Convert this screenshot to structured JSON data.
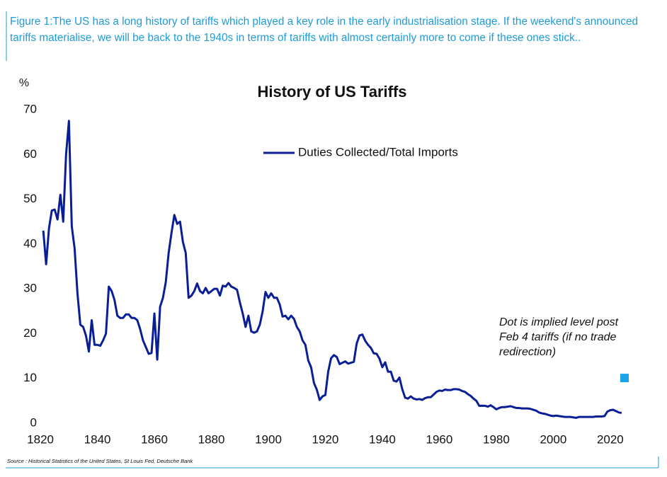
{
  "caption": "Figure 1:The US has a long history of tariffs which played a key role in the early industrialisation stage. If the weekend's announced tariffs materialise, we will be back to the 1940s in terms of tariffs with almost certainly more to come if these ones stick..",
  "source": "Source : Historical Statistics of the United States, St Louis Fed, Deutsche Bank",
  "chart_data": {
    "type": "line",
    "title": "History of US Tariffs",
    "y_label": "%",
    "annotation": [
      "Dot is implied level post",
      "Feb 4 tariffs (if no trade",
      "redirection)"
    ],
    "xlim": [
      1816,
      2026
    ],
    "xticks": [
      1820,
      1840,
      1860,
      1880,
      1900,
      1920,
      1940,
      1960,
      1980,
      2000,
      2020
    ],
    "ylim": [
      0,
      70
    ],
    "yticks": [
      0,
      10,
      20,
      30,
      40,
      50,
      60,
      70
    ],
    "grid": false,
    "legend": "top",
    "marker": {
      "x": 2025,
      "value": 10.1,
      "color": "#1aa3e8"
    },
    "x": [
      1821,
      1822,
      1823,
      1824,
      1825,
      1826,
      1827,
      1828,
      1829,
      1830,
      1831,
      1832,
      1833,
      1834,
      1835,
      1836,
      1837,
      1838,
      1839,
      1840,
      1841,
      1842,
      1843,
      1844,
      1845,
      1846,
      1847,
      1848,
      1849,
      1850,
      1851,
      1852,
      1853,
      1854,
      1855,
      1856,
      1857,
      1858,
      1859,
      1860,
      1861,
      1862,
      1863,
      1864,
      1865,
      1866,
      1867,
      1868,
      1869,
      1870,
      1871,
      1872,
      1873,
      1874,
      1875,
      1876,
      1877,
      1878,
      1879,
      1880,
      1881,
      1882,
      1883,
      1884,
      1885,
      1886,
      1887,
      1888,
      1889,
      1890,
      1891,
      1892,
      1893,
      1894,
      1895,
      1896,
      1897,
      1898,
      1899,
      1900,
      1901,
      1902,
      1903,
      1904,
      1905,
      1906,
      1907,
      1908,
      1909,
      1910,
      1911,
      1912,
      1913,
      1914,
      1915,
      1916,
      1917,
      1918,
      1919,
      1920,
      1921,
      1922,
      1923,
      1924,
      1925,
      1926,
      1927,
      1928,
      1929,
      1930,
      1931,
      1932,
      1933,
      1934,
      1935,
      1936,
      1937,
      1938,
      1939,
      1940,
      1941,
      1942,
      1943,
      1944,
      1945,
      1946,
      1947,
      1948,
      1949,
      1950,
      1951,
      1952,
      1953,
      1954,
      1955,
      1956,
      1957,
      1958,
      1959,
      1960,
      1961,
      1962,
      1963,
      1964,
      1965,
      1966,
      1967,
      1968,
      1969,
      1970,
      1971,
      1972,
      1973,
      1974,
      1975,
      1976,
      1977,
      1978,
      1979,
      1980,
      1981,
      1982,
      1983,
      1984,
      1985,
      1986,
      1987,
      1988,
      1989,
      1990,
      1991,
      1992,
      1993,
      1994,
      1995,
      1996,
      1997,
      1998,
      1999,
      2000,
      2001,
      2002,
      2003,
      2004,
      2005,
      2006,
      2007,
      2008,
      2009,
      2010,
      2011,
      2012,
      2013,
      2014,
      2015,
      2016,
      2017,
      2018,
      2019,
      2020,
      2021,
      2022,
      2023,
      2024
    ],
    "series": [
      {
        "name": "Duties Collected/Total Imports",
        "color": "#0a1f96",
        "values": [
          43,
          35.5,
          43.5,
          47.5,
          47.7,
          45.5,
          51,
          45,
          60,
          67.5,
          44,
          39,
          29,
          22,
          21.5,
          19.5,
          16,
          23,
          17.5,
          17.5,
          17.3,
          18.5,
          20,
          30.5,
          29.5,
          27.5,
          24,
          23.5,
          23.5,
          24.3,
          24.3,
          23.5,
          23.5,
          23,
          21,
          18.5,
          17,
          15.5,
          15.7,
          24.5,
          14.2,
          26,
          28,
          31.5,
          38,
          42.5,
          46.5,
          44.5,
          45,
          40.5,
          38,
          28,
          28.5,
          29.5,
          31.2,
          29.5,
          29,
          30.2,
          29,
          29.5,
          30,
          30,
          28.5,
          30.7,
          30.5,
          31.3,
          30.5,
          30.2,
          29.8,
          27,
          24.5,
          21.5,
          24,
          20.5,
          20.2,
          20.5,
          22,
          25,
          29.3,
          28,
          29,
          28,
          28,
          26.5,
          23.8,
          24,
          23.2,
          24,
          23.3,
          21.5,
          20.5,
          18.5,
          17.5,
          14,
          12.5,
          9,
          7.5,
          5.2,
          6,
          6.3,
          11.5,
          14.5,
          15.2,
          14.8,
          13.2,
          13.5,
          13.8,
          13.3,
          13.5,
          13.7,
          17.8,
          19.6,
          19.8,
          18.4,
          17.5,
          16.8,
          15.6,
          15.5,
          14.4,
          12.5,
          13.6,
          11.5,
          11.5,
          9.5,
          9.3,
          10.2,
          7.6,
          5.7,
          5.5,
          6,
          5.5,
          5.3,
          5.4,
          5.2,
          5.6,
          5.8,
          5.8,
          6.4,
          7,
          7.3,
          7.2,
          7.5,
          7.4,
          7.4,
          7.6,
          7.6,
          7.5,
          7.2,
          7,
          6.5,
          6.1,
          5.5,
          5,
          3.9,
          3.9,
          3.9,
          3.7,
          4,
          3.6,
          3.1,
          3.4,
          3.6,
          3.6,
          3.7,
          3.8,
          3.6,
          3.4,
          3.4,
          3.3,
          3.3,
          3.3,
          3.2,
          3,
          2.8,
          2.4,
          2.2,
          2.1,
          1.9,
          1.7,
          1.6,
          1.7,
          1.6,
          1.5,
          1.4,
          1.4,
          1.4,
          1.3,
          1.2,
          1.4,
          1.4,
          1.4,
          1.4,
          1.4,
          1.4,
          1.5,
          1.5,
          1.5,
          1.6,
          2.6,
          2.9,
          3,
          2.7,
          2.4,
          2.3
        ]
      }
    ]
  }
}
